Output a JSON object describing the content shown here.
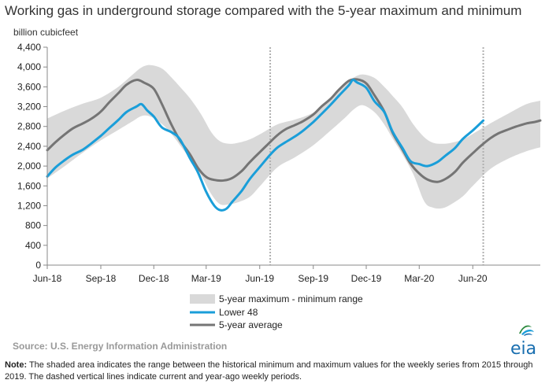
{
  "header": {
    "title": "Working gas in underground  storage compared with the 5-year maximum and minimum",
    "unit": "billion cubicfeet"
  },
  "footer": {
    "source": "Source:  U.S. Energy Information Administration",
    "note_label": "Note:",
    "note_text": " The shaded area indicates the range between the historical minimum and maximum values for the weekly series from 2015 through 2019. The dashed vertical lines indicate current and year-ago weekly periods.",
    "logo_text": "eia"
  },
  "colors": {
    "range_fill": "#d9d9d9",
    "lower48": "#1a9ed9",
    "average": "#757575",
    "dashed_line": "#b0b0b0"
  },
  "chart_data": {
    "type": "line",
    "title": "Working gas in underground  storage compared with the 5-year maximum and minimum",
    "ylabel": "billion cubicfeet",
    "ylim": [
      0,
      4400
    ],
    "yticks": [
      0,
      400,
      800,
      1200,
      1600,
      2000,
      2400,
      2800,
      3200,
      3600,
      4000,
      4400
    ],
    "ytick_labels": [
      "0",
      "400",
      "800",
      "1,200",
      "1,600",
      "2,000",
      "2,400",
      "2,800",
      "3,200",
      "3,600",
      "4,000",
      "4,400"
    ],
    "xlim": [
      "2018-06-01",
      "2020-09-25"
    ],
    "xticks": [
      "2018-06-01",
      "2018-09-01",
      "2018-12-01",
      "2019-03-01",
      "2019-06-01",
      "2019-09-01",
      "2019-12-01",
      "2020-03-01",
      "2020-06-01"
    ],
    "xtick_labels": [
      "Jun-18",
      "Sep-18",
      "Dec-18",
      "Mar-19",
      "Jun-19",
      "Sep-19",
      "Dec-19",
      "Mar-20",
      "Jun-20"
    ],
    "current_weeks": [
      "2019-06-19",
      "2020-06-19"
    ],
    "legend": [
      "5-year maximum - minimum range",
      "Lower 48",
      "5-year average"
    ],
    "legend_position": "bottom-center",
    "grid": false,
    "range": {
      "name": "5-year maximum - minimum range",
      "x": [
        "2018-06-01",
        "2018-07-01",
        "2018-08-01",
        "2018-09-01",
        "2018-10-01",
        "2018-10-25",
        "2018-11-10",
        "2018-11-25",
        "2018-12-15",
        "2019-01-01",
        "2019-01-15",
        "2019-02-01",
        "2019-02-20",
        "2019-03-10",
        "2019-03-25",
        "2019-04-10",
        "2019-04-25",
        "2019-05-15",
        "2019-06-01",
        "2019-07-01",
        "2019-08-01",
        "2019-09-01",
        "2019-10-01",
        "2019-10-25",
        "2019-11-10",
        "2019-11-25",
        "2019-12-15",
        "2020-01-01",
        "2020-01-15",
        "2020-02-01",
        "2020-02-20",
        "2020-03-10",
        "2020-03-25",
        "2020-04-10",
        "2020-04-25",
        "2020-05-15",
        "2020-06-01",
        "2020-07-01",
        "2020-08-01",
        "2020-09-01",
        "2020-09-25"
      ],
      "max": [
        2960,
        3120,
        3260,
        3380,
        3600,
        3840,
        3990,
        4040,
        3970,
        3780,
        3600,
        3370,
        3050,
        2680,
        2500,
        2450,
        2470,
        2540,
        2640,
        2840,
        2940,
        3080,
        3350,
        3630,
        3790,
        3850,
        3780,
        3600,
        3420,
        3190,
        2840,
        2580,
        2470,
        2450,
        2470,
        2540,
        2650,
        2860,
        3060,
        3250,
        3320
      ],
      "min": [
        1750,
        2000,
        2270,
        2520,
        2730,
        2900,
        3010,
        3000,
        2850,
        2640,
        2420,
        2150,
        1820,
        1430,
        1230,
        1230,
        1270,
        1380,
        1590,
        1970,
        2180,
        2420,
        2720,
        2970,
        3150,
        3230,
        3090,
        2840,
        2560,
        2240,
        1830,
        1280,
        1160,
        1150,
        1230,
        1390,
        1600,
        1940,
        2150,
        2300,
        2380
      ]
    },
    "series": [
      {
        "name": "Lower 48",
        "x": [
          "2018-06-01",
          "2018-06-15",
          "2018-07-01",
          "2018-07-15",
          "2018-08-01",
          "2018-08-15",
          "2018-09-01",
          "2018-09-15",
          "2018-10-01",
          "2018-10-15",
          "2018-11-01",
          "2018-11-10",
          "2018-11-20",
          "2018-12-01",
          "2018-12-15",
          "2019-01-01",
          "2019-01-15",
          "2019-02-01",
          "2019-02-15",
          "2019-03-01",
          "2019-03-15",
          "2019-03-25",
          "2019-04-05",
          "2019-04-15",
          "2019-05-01",
          "2019-05-15",
          "2019-06-01",
          "2019-06-19",
          "2019-07-01",
          "2019-07-15",
          "2019-08-01",
          "2019-08-15",
          "2019-09-01",
          "2019-09-15",
          "2019-10-01",
          "2019-10-15",
          "2019-11-01",
          "2019-11-08",
          "2019-11-15",
          "2019-12-01",
          "2019-12-15",
          "2020-01-01",
          "2020-01-15",
          "2020-02-01",
          "2020-02-15",
          "2020-03-01",
          "2020-03-15",
          "2020-04-01",
          "2020-04-15",
          "2020-05-01",
          "2020-05-15",
          "2020-06-01",
          "2020-06-19"
        ],
        "values": [
          1790,
          1970,
          2120,
          2230,
          2330,
          2450,
          2610,
          2760,
          2930,
          3090,
          3200,
          3250,
          3120,
          3000,
          2780,
          2680,
          2540,
          2160,
          1870,
          1480,
          1200,
          1110,
          1140,
          1280,
          1500,
          1740,
          1980,
          2230,
          2370,
          2480,
          2600,
          2720,
          2890,
          3050,
          3240,
          3420,
          3630,
          3740,
          3690,
          3580,
          3310,
          3090,
          2700,
          2370,
          2100,
          2040,
          2000,
          2080,
          2210,
          2360,
          2550,
          2720,
          2920
        ]
      },
      {
        "name": "5-year average",
        "x": [
          "2018-06-01",
          "2018-06-15",
          "2018-07-01",
          "2018-07-15",
          "2018-08-01",
          "2018-08-15",
          "2018-09-01",
          "2018-09-15",
          "2018-10-01",
          "2018-10-15",
          "2018-11-01",
          "2018-11-15",
          "2018-12-01",
          "2018-12-15",
          "2019-01-01",
          "2019-01-15",
          "2019-02-01",
          "2019-02-15",
          "2019-03-01",
          "2019-03-15",
          "2019-04-01",
          "2019-04-15",
          "2019-05-01",
          "2019-05-15",
          "2019-06-01",
          "2019-06-15",
          "2019-07-01",
          "2019-07-15",
          "2019-08-01",
          "2019-08-15",
          "2019-09-01",
          "2019-09-15",
          "2019-10-01",
          "2019-10-15",
          "2019-11-01",
          "2019-11-15",
          "2019-12-01",
          "2019-12-15",
          "2020-01-01",
          "2020-01-15",
          "2020-02-01",
          "2020-02-15",
          "2020-03-01",
          "2020-03-15",
          "2020-04-01",
          "2020-04-15",
          "2020-05-01",
          "2020-05-15",
          "2020-06-01",
          "2020-06-15",
          "2020-07-01",
          "2020-07-15",
          "2020-08-01",
          "2020-08-15",
          "2020-09-01",
          "2020-09-15",
          "2020-09-25"
        ],
        "values": [
          2320,
          2480,
          2640,
          2760,
          2860,
          2950,
          3100,
          3280,
          3470,
          3640,
          3740,
          3680,
          3560,
          3250,
          2820,
          2520,
          2240,
          1960,
          1780,
          1720,
          1710,
          1760,
          1900,
          2080,
          2280,
          2440,
          2620,
          2740,
          2830,
          2910,
          3040,
          3200,
          3360,
          3540,
          3720,
          3750,
          3670,
          3430,
          3100,
          2680,
          2340,
          2050,
          1850,
          1730,
          1680,
          1740,
          1880,
          2070,
          2260,
          2410,
          2560,
          2660,
          2740,
          2800,
          2860,
          2890,
          2920
        ]
      }
    ]
  }
}
